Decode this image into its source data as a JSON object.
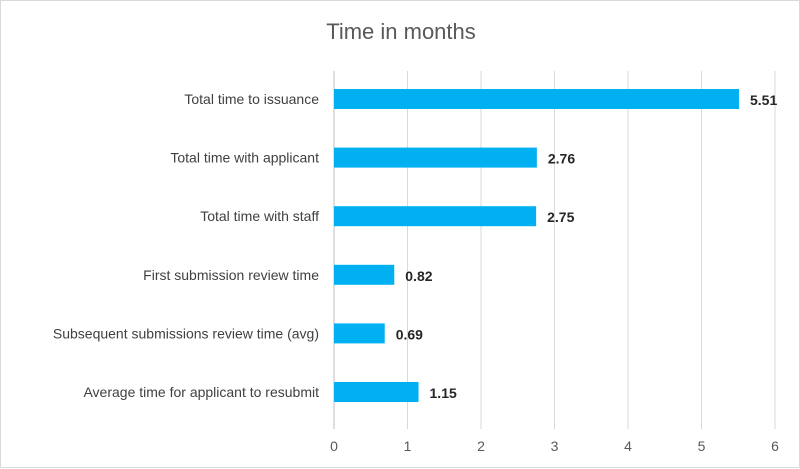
{
  "chart_data": {
    "type": "bar",
    "orientation": "horizontal",
    "title": "Time in months",
    "xlabel": "",
    "ylabel": "",
    "categories": [
      "Total time to issuance",
      "Total time with applicant",
      "Total time with staff",
      "First submission review time",
      "Subsequent submissions review time (avg)",
      "Average time for applicant to resubmit"
    ],
    "values": [
      5.51,
      2.76,
      2.75,
      0.82,
      0.69,
      1.15
    ],
    "value_labels": [
      "5.51",
      "2.76",
      "2.75",
      "0.82",
      "0.69",
      "1.15"
    ],
    "xlim": [
      0,
      6
    ],
    "ticks": [
      "0",
      "1",
      "2",
      "3",
      "4",
      "5",
      "6"
    ],
    "grid": true,
    "legend": "none",
    "bar_color": "#00b0f0"
  }
}
